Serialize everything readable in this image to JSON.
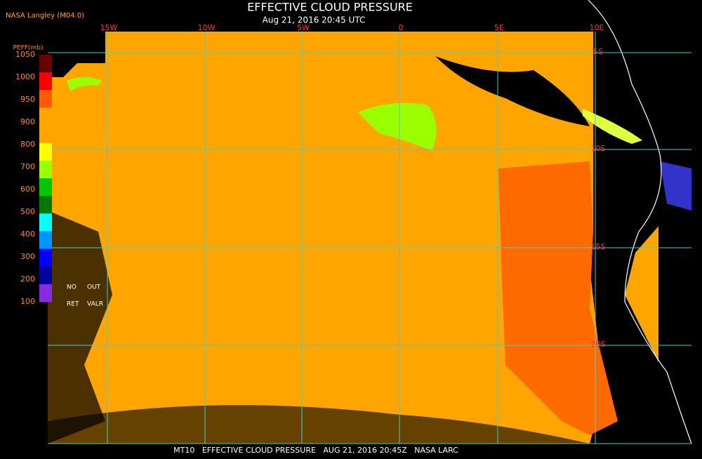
{
  "header": {
    "source": "NASA Langley (M04.0)",
    "title": "EFFECTIVE CLOUD PRESSURE",
    "subtitle": "Aug 21, 2016 20:45 UTC"
  },
  "colorbar": {
    "title": "PEFF(mb)",
    "labels": [
      1050,
      1000,
      950,
      900,
      800,
      700,
      600,
      500,
      400,
      300,
      200,
      100
    ],
    "colors": [
      "#6b0000",
      "#ff0000",
      "#ff5a00",
      "#ffa500",
      "#ffa500",
      "#ffff00",
      "#9cff00",
      "#00c800",
      "#007a00",
      "#00ffff",
      "#0096ff",
      "#0000ff",
      "#0000a0",
      "#8a2be2"
    ],
    "notes": [
      "NO",
      "OUT",
      "RET",
      "VALR"
    ]
  },
  "map": {
    "lon_labels": [
      "15W",
      "10W",
      "5W",
      "0",
      "5E",
      "10E"
    ],
    "lat_labels": [
      "5S",
      "10S",
      "15S",
      "20S"
    ]
  },
  "footer": {
    "text": "MT10   EFFECTIVE CLOUD PRESSURE   AUG 21, 2016 20:45Z   NASA LARC"
  }
}
